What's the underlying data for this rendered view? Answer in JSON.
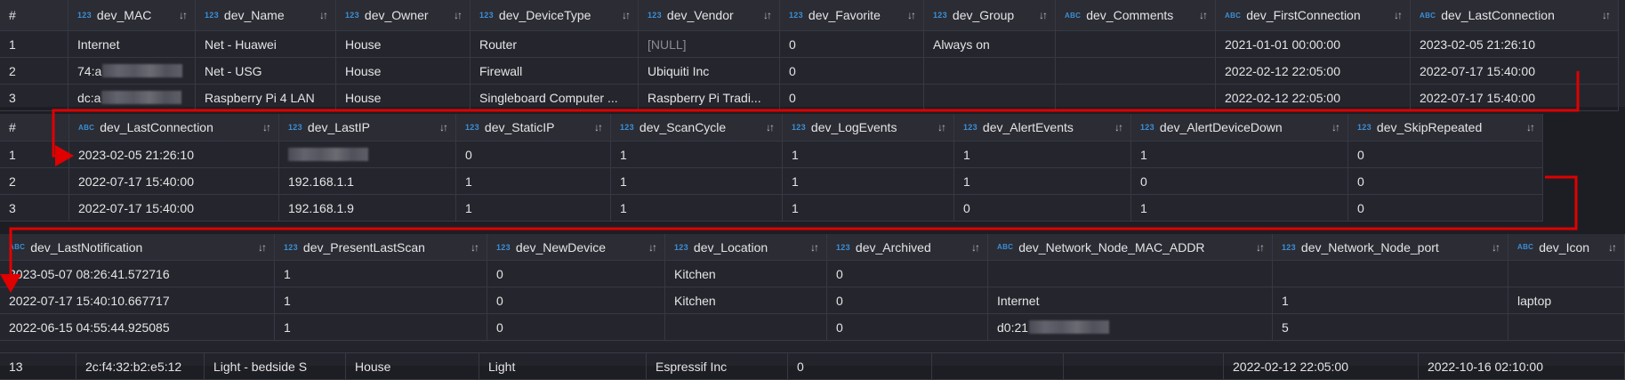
{
  "panels": [
    {
      "id": "devices-table-part1",
      "columns": [
        {
          "type": "",
          "name": "#"
        },
        {
          "type": "123",
          "name": "dev_MAC"
        },
        {
          "type": "123",
          "name": "dev_Name"
        },
        {
          "type": "123",
          "name": "dev_Owner"
        },
        {
          "type": "123",
          "name": "dev_DeviceType"
        },
        {
          "type": "123",
          "name": "dev_Vendor"
        },
        {
          "type": "123",
          "name": "dev_Favorite"
        },
        {
          "type": "123",
          "name": "dev_Group"
        },
        {
          "type": "ABC",
          "name": "dev_Comments"
        },
        {
          "type": "ABC",
          "name": "dev_FirstConnection"
        },
        {
          "type": "ABC",
          "name": "dev_LastConnection"
        }
      ],
      "rows": [
        [
          "1",
          "Internet",
          "Net - Huawei",
          "House",
          "Router",
          {
            "text": "[NULL]",
            "null": true
          },
          "0",
          "Always on",
          "",
          "2021-01-01 00:00:00",
          "2023-02-05 21:26:10"
        ],
        [
          "2",
          {
            "text": "74:a",
            "redacted": true
          },
          "Net - USG",
          "House",
          "Firewall",
          "Ubiquiti Inc",
          "0",
          "",
          "",
          "2022-02-12 22:05:00",
          "2022-07-17 15:40:00"
        ],
        [
          "3",
          {
            "text": "dc:a",
            "redacted": true
          },
          "Raspberry Pi 4 LAN",
          "House",
          "Singleboard Computer ...",
          "Raspberry Pi Tradi...",
          "0",
          "",
          "",
          "2022-02-12 22:05:00",
          "2022-07-17 15:40:00"
        ]
      ]
    },
    {
      "id": "devices-table-part2",
      "columns": [
        {
          "type": "",
          "name": "#"
        },
        {
          "type": "ABC",
          "name": "dev_LastConnection"
        },
        {
          "type": "123",
          "name": "dev_LastIP"
        },
        {
          "type": "123",
          "name": "dev_StaticIP"
        },
        {
          "type": "123",
          "name": "dev_ScanCycle"
        },
        {
          "type": "123",
          "name": "dev_LogEvents"
        },
        {
          "type": "123",
          "name": "dev_AlertEvents"
        },
        {
          "type": "123",
          "name": "dev_AlertDeviceDown"
        },
        {
          "type": "123",
          "name": "dev_SkipRepeated"
        }
      ],
      "rows": [
        [
          "1",
          "2023-02-05 21:26:10",
          {
            "text": "",
            "redacted": true
          },
          "0",
          "1",
          "1",
          "1",
          "1",
          "0"
        ],
        [
          "2",
          "2022-07-17 15:40:00",
          "192.168.1.1",
          "1",
          "1",
          "1",
          "1",
          "0",
          "0"
        ],
        [
          "3",
          "2022-07-17 15:40:00",
          "192.168.1.9",
          "1",
          "1",
          "1",
          "0",
          "1",
          "0"
        ]
      ]
    },
    {
      "id": "devices-table-part3",
      "columns": [
        {
          "type": "ABC",
          "name": "dev_LastNotification"
        },
        {
          "type": "123",
          "name": "dev_PresentLastScan"
        },
        {
          "type": "123",
          "name": "dev_NewDevice"
        },
        {
          "type": "123",
          "name": "dev_Location"
        },
        {
          "type": "123",
          "name": "dev_Archived"
        },
        {
          "type": "ABC",
          "name": "dev_Network_Node_MAC_ADDR"
        },
        {
          "type": "123",
          "name": "dev_Network_Node_port"
        },
        {
          "type": "ABC",
          "name": "dev_Icon"
        }
      ],
      "rows": [
        [
          "2023-05-07 08:26:41.572716",
          "1",
          "0",
          "Kitchen",
          "0",
          "",
          "",
          ""
        ],
        [
          "2022-07-17 15:40:10.667717",
          "1",
          "0",
          "Kitchen",
          "0",
          "Internet",
          "1",
          "laptop"
        ],
        [
          "2022-06-15 04:55:44.925085",
          "1",
          "0",
          "",
          "0",
          {
            "text": "d0:21",
            "redacted": true
          },
          "5",
          ""
        ]
      ]
    }
  ],
  "background_row": [
    "13",
    "2c:f4:32:b2:e5:12",
    "Light - bedside S",
    "House",
    "Light",
    "Espressif Inc",
    "0",
    "",
    "",
    "2022-02-12 22:05:00",
    "2022-10-16 02:10:00"
  ],
  "sort_icon": "sort-arrows-icon",
  "colors": {
    "type_badge": "#3b8fd6",
    "annotation_arrow": "#e00000",
    "background": "#25262d",
    "header": "#2b2c34"
  }
}
